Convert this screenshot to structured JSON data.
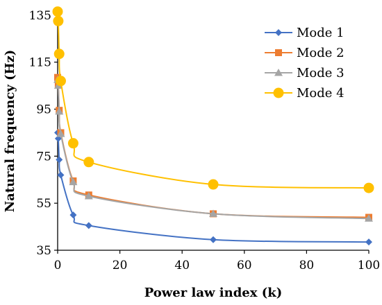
{
  "chart_data": {
    "type": "line",
    "title": "",
    "xlabel": "Power law index (k)",
    "ylabel": "Natural frequency (Hz)",
    "xlim": [
      0,
      100
    ],
    "ylim": [
      35,
      137
    ],
    "xticks": [
      0,
      20,
      40,
      60,
      80,
      100
    ],
    "yticks": [
      35,
      55,
      75,
      95,
      115,
      135
    ],
    "grid": false,
    "legend_position": "top-right",
    "series": [
      {
        "name": "Mode 1",
        "color": "#4472C4",
        "marker": "diamond",
        "x": [
          0,
          0.2,
          0.5,
          1,
          5,
          10,
          50,
          100
        ],
        "y": [
          85,
          82.5,
          73.5,
          67,
          50,
          45.5,
          39.5,
          38.5
        ]
      },
      {
        "name": "Mode 2",
        "color": "#ED7D31",
        "marker": "square",
        "x": [
          0,
          0.2,
          0.5,
          1,
          5,
          10,
          50,
          100
        ],
        "y": [
          108.5,
          105.5,
          94.5,
          85,
          64.5,
          58.5,
          50.5,
          49
        ]
      },
      {
        "name": "Mode 3",
        "color": "#A5A5A5",
        "marker": "triangle",
        "x": [
          0,
          0.2,
          0.5,
          1,
          5,
          10,
          50,
          100
        ],
        "y": [
          107.5,
          105,
          94,
          84.5,
          64,
          58,
          50.5,
          48.5
        ]
      },
      {
        "name": "Mode 4",
        "color": "#FFC000",
        "marker": "circle",
        "x": [
          0,
          0.2,
          0.5,
          1,
          5,
          10,
          50,
          100
        ],
        "y": [
          136.5,
          132.5,
          118.5,
          107,
          80.5,
          72.5,
          63,
          61.5
        ]
      }
    ]
  }
}
